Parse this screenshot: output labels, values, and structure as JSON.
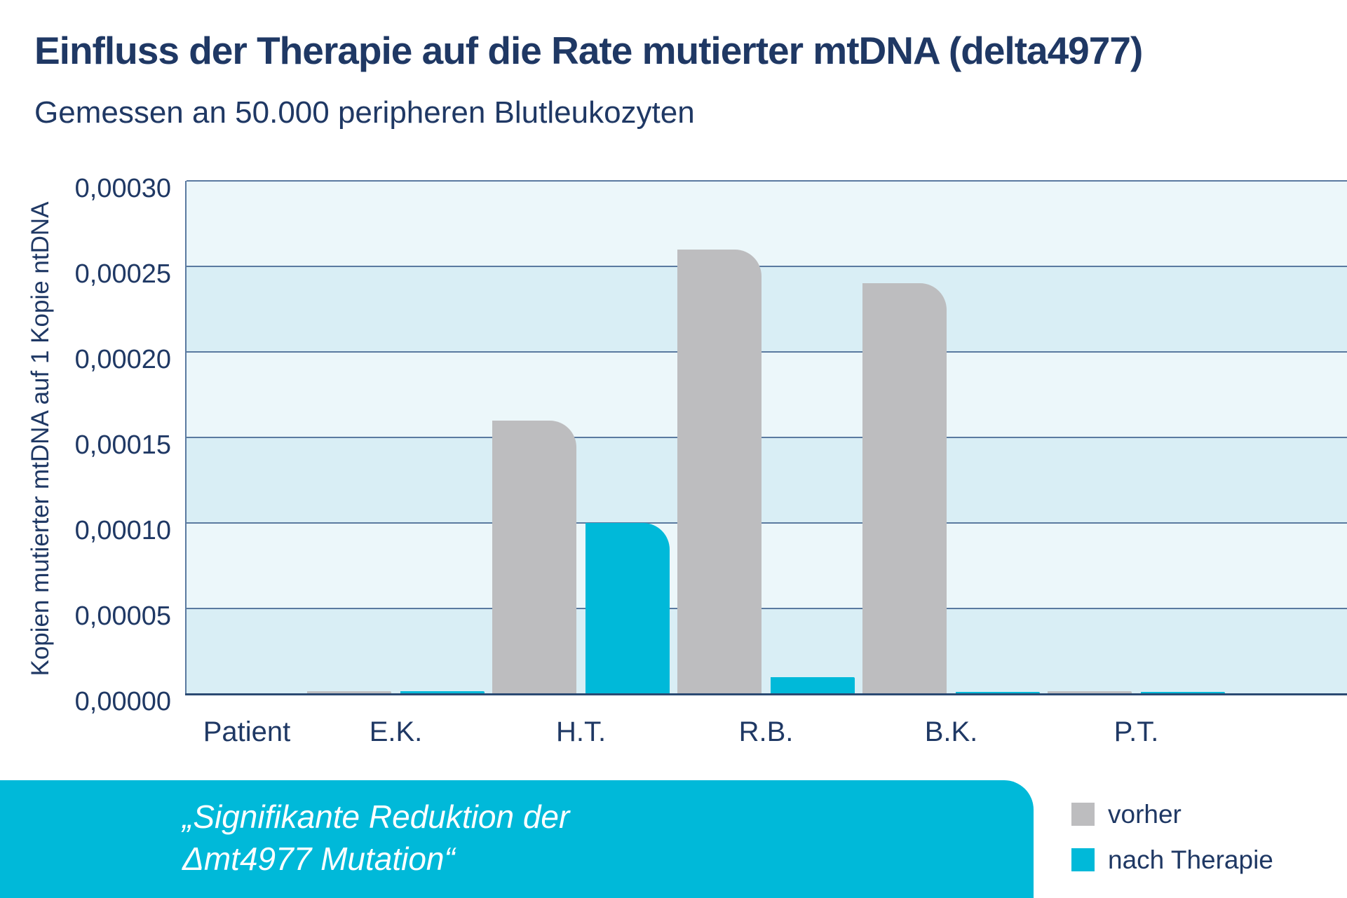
{
  "header": {
    "title": "Einfluss der Therapie auf die Rate mutierter mtDNA (delta4977)",
    "subtitle": "Gemessen an 50.000 peripheren Blutleukozyten"
  },
  "chart_data": {
    "type": "bar",
    "title": "Einfluss der Therapie auf die Rate mutierter mtDNA (delta4977)",
    "subtitle": "Gemessen an 50.000 peripheren Blutleukozyten",
    "ylabel": "Kopien mutierter mtDNA auf 1 Kopie ntDNA",
    "xlabel": "Patient",
    "categories": [
      "E.K.",
      "H.T.",
      "R.B.",
      "B.K.",
      "P.T."
    ],
    "series": [
      {
        "name": "vorher",
        "color": "#bdbdbf",
        "values": [
          1.5e-06,
          0.00016,
          0.00026,
          0.00024,
          1.5e-06
        ]
      },
      {
        "name": "nach Therapie",
        "color": "#00b9d9",
        "values": [
          1.5e-06,
          0.0001,
          1e-05,
          1e-06,
          1e-06
        ]
      }
    ],
    "ylim": [
      0,
      0.0003
    ],
    "ytick_step": 5e-05,
    "ytick_labels_top_to_bottom": [
      "0,00030",
      "0,00025",
      "0,00020",
      "0,00015",
      "0,00010",
      "0,00005",
      "0,00000"
    ],
    "grid": "horizontal",
    "band_colors": {
      "light": "#ecf7fa",
      "dark": "#d9eef5"
    },
    "gridline_color": "#5a7aa0",
    "axis_color": "#2b4a72",
    "legend_position": "bottom-right"
  },
  "banner": {
    "background": "#00b9d9",
    "lines": [
      "„Signifikante Reduktion der",
      "Δmt4977 Mutation“"
    ]
  },
  "colors": {
    "navy_text": "#1f3864",
    "vorher_gray": "#bdbdbf",
    "therapy_cyan": "#00b9d9"
  }
}
